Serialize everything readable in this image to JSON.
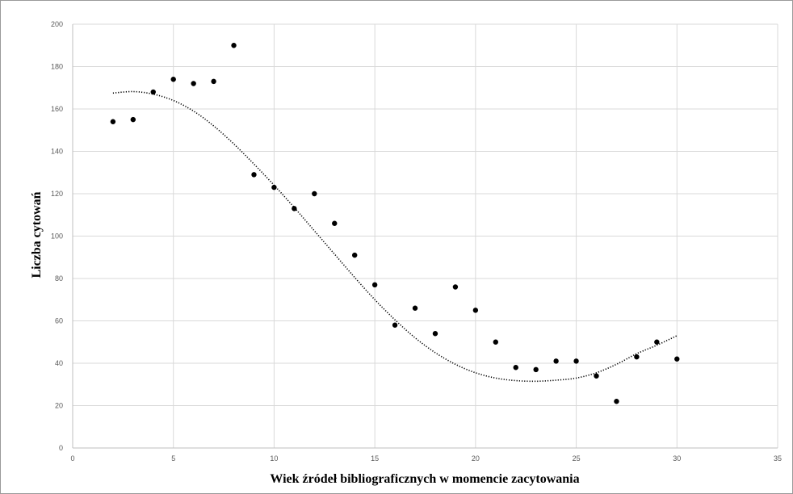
{
  "chart_data": {
    "type": "scatter",
    "xlabel": "Wiek źródeł bibliograficznych w momencie zacytowania",
    "ylabel": "Liczba cytowań",
    "xlim": [
      0,
      35
    ],
    "ylim": [
      0,
      200
    ],
    "x_ticks": [
      "0",
      "5",
      "10",
      "15",
      "20",
      "25",
      "30",
      "35"
    ],
    "y_ticks": [
      "0",
      "20",
      "40",
      "60",
      "80",
      "100",
      "120",
      "140",
      "160",
      "180",
      "200"
    ],
    "grid": true,
    "legend": "none",
    "series": [
      {
        "x": [
          2,
          3,
          4,
          5,
          6,
          7,
          8,
          9,
          10,
          11,
          12,
          13,
          14,
          15,
          16,
          17,
          18,
          19,
          20,
          21,
          22,
          23,
          24,
          25,
          26,
          27,
          28,
          29,
          30
        ],
        "y": [
          154,
          155,
          168,
          174,
          172,
          173,
          190,
          129,
          123,
          113,
          120,
          106,
          91,
          77,
          58,
          66,
          54,
          76,
          65,
          50,
          38,
          37,
          41,
          41,
          34,
          22,
          43,
          50,
          42
        ],
        "marker": "circle",
        "color": "#000000"
      }
    ],
    "trendline": {
      "style": "dotted",
      "color": "#000000",
      "x_range": [
        2,
        30
      ],
      "points": [
        [
          2,
          167.5
        ],
        [
          3,
          168.2
        ],
        [
          4,
          167.0
        ],
        [
          5,
          164.0
        ],
        [
          6,
          159.0
        ],
        [
          7,
          152.0
        ],
        [
          8,
          143.5
        ],
        [
          9,
          134.0
        ],
        [
          10,
          124.0
        ],
        [
          11,
          113.5
        ],
        [
          12,
          102.5
        ],
        [
          13,
          91.5
        ],
        [
          14,
          80.5
        ],
        [
          15,
          70.0
        ],
        [
          16,
          60.5
        ],
        [
          17,
          52.0
        ],
        [
          18,
          45.0
        ],
        [
          19,
          39.5
        ],
        [
          20,
          35.5
        ],
        [
          21,
          33.0
        ],
        [
          22,
          31.8
        ],
        [
          23,
          31.5
        ],
        [
          24,
          32.0
        ],
        [
          25,
          33.0
        ],
        [
          26,
          35.5
        ],
        [
          27,
          39.5
        ],
        [
          28,
          44.5
        ],
        [
          29,
          48.5
        ],
        [
          30,
          53.0
        ]
      ]
    }
  }
}
